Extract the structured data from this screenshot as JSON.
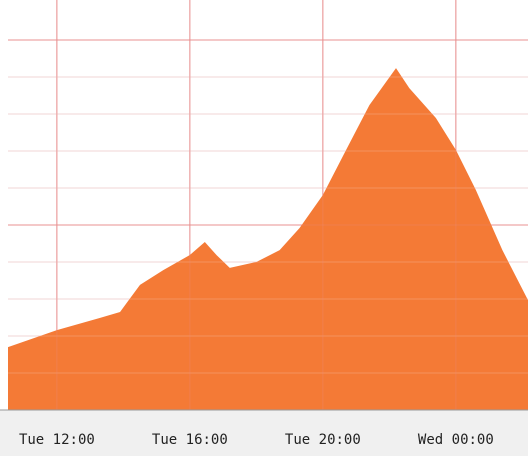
{
  "chart_data": {
    "type": "area",
    "x": [
      10.53,
      12,
      13.3,
      13.9,
      14.5,
      15.2,
      16,
      16.45,
      16.8,
      17.2,
      18,
      18.7,
      19.3,
      20,
      20.7,
      21.4,
      22.2,
      22.6,
      23.4,
      24,
      24.6,
      25.4,
      26.17
    ],
    "series": [
      {
        "color": "#f47a36",
        "values": [
          1.7,
          2.16,
          2.49,
          2.65,
          3.38,
          3.78,
          4.19,
          4.54,
          4.19,
          3.84,
          4.0,
          4.32,
          4.92,
          5.81,
          7.03,
          8.24,
          9.24,
          8.7,
          7.89,
          7.03,
          5.95,
          4.32,
          2.97
        ]
      }
    ],
    "xlim": [
      10.53,
      26.17
    ],
    "xticks": [
      {
        "value": 12,
        "label": "Tue 12:00"
      },
      {
        "value": 16,
        "label": "Tue 16:00"
      },
      {
        "value": 20,
        "label": "Tue 20:00"
      },
      {
        "value": 24,
        "label": "Wed 00:00"
      }
    ],
    "ylim": [
      0,
      11.08
    ],
    "yticks": [
      1,
      2,
      3,
      4,
      5,
      6,
      7,
      8,
      9,
      10
    ],
    "major_yticks": [
      5,
      10
    ],
    "grid": true
  }
}
